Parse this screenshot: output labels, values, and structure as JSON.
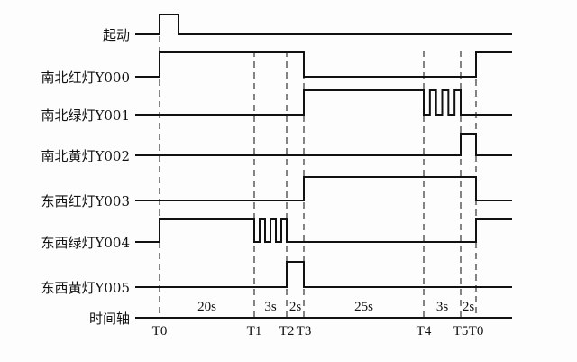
{
  "colors": {
    "line": "#111111",
    "background": "#fdfdfd"
  },
  "time_markers": [
    "T0",
    "T1",
    "T2",
    "T3",
    "T4",
    "T5",
    "T0"
  ],
  "durations": [
    "20s",
    "3s",
    "2s",
    "25s",
    "3s",
    "2s"
  ],
  "axis_label": "时间轴",
  "signals": [
    {
      "label": "起动",
      "levels": [
        0,
        "pulse",
        0,
        0,
        0,
        0,
        0,
        0
      ]
    },
    {
      "label": "南北红灯Y000",
      "levels": [
        0,
        1,
        1,
        1,
        0,
        0,
        0,
        1
      ]
    },
    {
      "label": "南北绿灯Y001",
      "levels": [
        0,
        0,
        0,
        0,
        1,
        "blink",
        0,
        0
      ]
    },
    {
      "label": "南北黄灯Y002",
      "levels": [
        0,
        0,
        0,
        0,
        0,
        0,
        1,
        0
      ]
    },
    {
      "label": "东西红灯Y003",
      "levels": [
        0,
        0,
        0,
        0,
        1,
        1,
        1,
        0
      ]
    },
    {
      "label": "东西绿灯Y004",
      "levels": [
        0,
        1,
        "blink",
        0,
        0,
        0,
        0,
        1
      ]
    },
    {
      "label": "东西黄灯Y005",
      "levels": [
        0,
        0,
        0,
        1,
        0,
        0,
        0,
        0
      ]
    }
  ]
}
